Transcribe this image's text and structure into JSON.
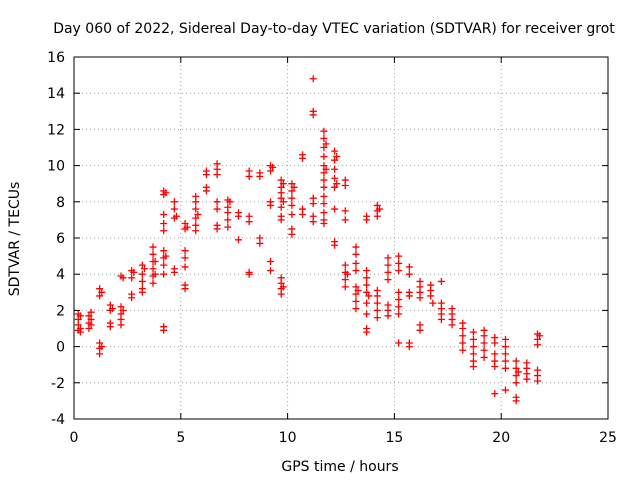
{
  "chart_data": {
    "type": "scatter",
    "title": "Day 060 of 2022, Sidereal Day-to-day VTEC variation (SDTVAR) for receiver grot",
    "xlabel": "GPS time / hours",
    "ylabel": "SDTVAR / TECUs",
    "xlim": [
      0,
      25
    ],
    "ylim": [
      -4,
      16
    ],
    "x_ticks": [
      0,
      5,
      10,
      15,
      20,
      25
    ],
    "y_ticks": [
      -4,
      -2,
      0,
      2,
      4,
      6,
      8,
      10,
      12,
      14,
      16
    ],
    "grid": true,
    "marker": "plus",
    "series": [
      {
        "name": "SDTVAR",
        "color": "#ff0000",
        "points": [
          [
            0.2,
            1.8
          ],
          [
            0.2,
            1.5
          ],
          [
            0.2,
            1.2
          ],
          [
            0.2,
            0.9
          ],
          [
            0.3,
            1.7
          ],
          [
            0.3,
            1.0
          ],
          [
            0.3,
            0.8
          ],
          [
            0.7,
            1.7
          ],
          [
            0.7,
            1.3
          ],
          [
            0.7,
            1.0
          ],
          [
            0.8,
            1.5
          ],
          [
            0.8,
            1.2
          ],
          [
            0.8,
            1.9
          ],
          [
            1.2,
            3.2
          ],
          [
            1.2,
            2.8
          ],
          [
            1.2,
            0.2
          ],
          [
            1.2,
            -0.1
          ],
          [
            1.2,
            -0.4
          ],
          [
            1.3,
            0.0
          ],
          [
            1.3,
            3.0
          ],
          [
            1.7,
            2.3
          ],
          [
            1.7,
            2.0
          ],
          [
            1.7,
            1.3
          ],
          [
            1.7,
            1.1
          ],
          [
            1.8,
            2.1
          ],
          [
            2.2,
            3.9
          ],
          [
            2.2,
            2.2
          ],
          [
            2.2,
            1.8
          ],
          [
            2.2,
            1.5
          ],
          [
            2.2,
            1.2
          ],
          [
            2.3,
            2.0
          ],
          [
            2.3,
            3.8
          ],
          [
            2.7,
            4.2
          ],
          [
            2.7,
            3.8
          ],
          [
            2.7,
            2.9
          ],
          [
            2.7,
            2.7
          ],
          [
            2.8,
            4.1
          ],
          [
            3.2,
            4.5
          ],
          [
            3.2,
            4.0
          ],
          [
            3.2,
            3.6
          ],
          [
            3.2,
            3.2
          ],
          [
            3.2,
            3.0
          ],
          [
            3.3,
            4.3
          ],
          [
            3.7,
            5.5
          ],
          [
            3.7,
            5.1
          ],
          [
            3.7,
            4.7
          ],
          [
            3.7,
            4.3
          ],
          [
            3.7,
            3.9
          ],
          [
            3.7,
            3.5
          ],
          [
            3.8,
            4.0
          ],
          [
            3.8,
            4.7
          ],
          [
            4.2,
            8.6
          ],
          [
            4.2,
            8.4
          ],
          [
            4.2,
            7.3
          ],
          [
            4.2,
            6.8
          ],
          [
            4.2,
            6.4
          ],
          [
            4.2,
            5.3
          ],
          [
            4.2,
            4.9
          ],
          [
            4.2,
            4.5
          ],
          [
            4.2,
            4.0
          ],
          [
            4.2,
            1.1
          ],
          [
            4.2,
            0.9
          ],
          [
            4.3,
            5.0
          ],
          [
            4.3,
            8.5
          ],
          [
            4.7,
            8.0
          ],
          [
            4.7,
            7.6
          ],
          [
            4.7,
            7.1
          ],
          [
            4.7,
            4.3
          ],
          [
            4.7,
            4.1
          ],
          [
            4.8,
            7.2
          ],
          [
            5.2,
            6.8
          ],
          [
            5.2,
            6.5
          ],
          [
            5.2,
            5.3
          ],
          [
            5.2,
            4.9
          ],
          [
            5.2,
            4.4
          ],
          [
            5.2,
            3.4
          ],
          [
            5.2,
            3.2
          ],
          [
            5.3,
            6.6
          ],
          [
            5.7,
            8.3
          ],
          [
            5.7,
            8.0
          ],
          [
            5.7,
            7.6
          ],
          [
            5.7,
            7.1
          ],
          [
            5.7,
            6.7
          ],
          [
            5.7,
            6.4
          ],
          [
            5.8,
            7.3
          ],
          [
            6.2,
            9.7
          ],
          [
            6.2,
            9.5
          ],
          [
            6.2,
            8.8
          ],
          [
            6.2,
            8.6
          ],
          [
            6.7,
            10.1
          ],
          [
            6.7,
            9.8
          ],
          [
            6.7,
            9.5
          ],
          [
            6.7,
            8.0
          ],
          [
            6.7,
            7.6
          ],
          [
            6.7,
            6.7
          ],
          [
            6.7,
            6.5
          ],
          [
            7.2,
            8.1
          ],
          [
            7.2,
            7.7
          ],
          [
            7.2,
            7.4
          ],
          [
            7.2,
            7.0
          ],
          [
            7.2,
            6.6
          ],
          [
            7.3,
            8.0
          ],
          [
            7.7,
            7.4
          ],
          [
            7.7,
            7.2
          ],
          [
            7.7,
            5.9
          ],
          [
            8.2,
            9.7
          ],
          [
            8.2,
            9.4
          ],
          [
            8.2,
            7.2
          ],
          [
            8.2,
            6.9
          ],
          [
            8.2,
            4.1
          ],
          [
            8.2,
            4.0
          ],
          [
            8.7,
            9.6
          ],
          [
            8.7,
            9.4
          ],
          [
            8.7,
            6.0
          ],
          [
            8.7,
            5.7
          ],
          [
            9.2,
            10.0
          ],
          [
            9.2,
            9.7
          ],
          [
            9.2,
            8.0
          ],
          [
            9.2,
            7.8
          ],
          [
            9.2,
            4.7
          ],
          [
            9.2,
            4.2
          ],
          [
            9.3,
            9.9
          ],
          [
            9.7,
            9.2
          ],
          [
            9.7,
            8.8
          ],
          [
            9.7,
            8.5
          ],
          [
            9.7,
            8.2
          ],
          [
            9.7,
            7.7
          ],
          [
            9.7,
            7.2
          ],
          [
            9.7,
            7.0
          ],
          [
            9.7,
            3.8
          ],
          [
            9.7,
            3.5
          ],
          [
            9.7,
            3.2
          ],
          [
            9.7,
            2.9
          ],
          [
            9.8,
            9.0
          ],
          [
            9.8,
            8.0
          ],
          [
            9.8,
            3.3
          ],
          [
            10.2,
            9.0
          ],
          [
            10.2,
            8.6
          ],
          [
            10.2,
            8.2
          ],
          [
            10.2,
            7.8
          ],
          [
            10.2,
            7.3
          ],
          [
            10.2,
            6.5
          ],
          [
            10.2,
            6.2
          ],
          [
            10.3,
            8.8
          ],
          [
            10.7,
            10.6
          ],
          [
            10.7,
            10.4
          ],
          [
            10.7,
            7.6
          ],
          [
            10.7,
            7.3
          ],
          [
            11.2,
            14.8
          ],
          [
            11.2,
            13.0
          ],
          [
            11.2,
            12.8
          ],
          [
            11.2,
            8.2
          ],
          [
            11.2,
            7.9
          ],
          [
            11.2,
            7.2
          ],
          [
            11.2,
            6.9
          ],
          [
            11.7,
            11.9
          ],
          [
            11.7,
            11.5
          ],
          [
            11.7,
            11.0
          ],
          [
            11.7,
            10.5
          ],
          [
            11.7,
            10.0
          ],
          [
            11.7,
            9.6
          ],
          [
            11.7,
            9.2
          ],
          [
            11.7,
            8.8
          ],
          [
            11.7,
            8.3
          ],
          [
            11.7,
            7.9
          ],
          [
            11.7,
            7.4
          ],
          [
            11.7,
            7.0
          ],
          [
            11.7,
            6.8
          ],
          [
            11.8,
            11.2
          ],
          [
            11.8,
            9.8
          ],
          [
            12.2,
            10.8
          ],
          [
            12.2,
            10.3
          ],
          [
            12.2,
            9.8
          ],
          [
            12.2,
            9.3
          ],
          [
            12.2,
            8.8
          ],
          [
            12.2,
            7.6
          ],
          [
            12.2,
            5.8
          ],
          [
            12.2,
            5.6
          ],
          [
            12.3,
            10.5
          ],
          [
            12.3,
            9.0
          ],
          [
            12.7,
            9.2
          ],
          [
            12.7,
            8.9
          ],
          [
            12.7,
            7.5
          ],
          [
            12.7,
            7.0
          ],
          [
            12.7,
            4.5
          ],
          [
            12.7,
            4.1
          ],
          [
            12.7,
            3.7
          ],
          [
            12.7,
            3.3
          ],
          [
            12.8,
            4.0
          ],
          [
            13.2,
            5.5
          ],
          [
            13.2,
            5.1
          ],
          [
            13.2,
            4.6
          ],
          [
            13.2,
            4.2
          ],
          [
            13.2,
            3.3
          ],
          [
            13.2,
            2.9
          ],
          [
            13.2,
            2.5
          ],
          [
            13.2,
            2.1
          ],
          [
            13.3,
            3.1
          ],
          [
            13.7,
            7.2
          ],
          [
            13.7,
            7.0
          ],
          [
            13.7,
            4.2
          ],
          [
            13.7,
            3.8
          ],
          [
            13.7,
            3.4
          ],
          [
            13.7,
            3.0
          ],
          [
            13.7,
            2.4
          ],
          [
            13.7,
            1.8
          ],
          [
            13.7,
            1.0
          ],
          [
            13.7,
            0.8
          ],
          [
            13.8,
            2.8
          ],
          [
            14.2,
            7.8
          ],
          [
            14.2,
            7.5
          ],
          [
            14.2,
            7.2
          ],
          [
            14.2,
            3.1
          ],
          [
            14.2,
            2.8
          ],
          [
            14.2,
            2.4
          ],
          [
            14.2,
            2.0
          ],
          [
            14.2,
            1.6
          ],
          [
            14.3,
            7.6
          ],
          [
            14.7,
            4.9
          ],
          [
            14.7,
            4.5
          ],
          [
            14.7,
            4.1
          ],
          [
            14.7,
            3.7
          ],
          [
            14.7,
            2.3
          ],
          [
            14.7,
            2.0
          ],
          [
            14.7,
            1.7
          ],
          [
            15.2,
            5.0
          ],
          [
            15.2,
            4.6
          ],
          [
            15.2,
            4.2
          ],
          [
            15.2,
            3.0
          ],
          [
            15.2,
            2.6
          ],
          [
            15.2,
            2.2
          ],
          [
            15.2,
            1.8
          ],
          [
            15.2,
            0.2
          ],
          [
            15.7,
            4.4
          ],
          [
            15.7,
            4.0
          ],
          [
            15.7,
            3.0
          ],
          [
            15.7,
            2.8
          ],
          [
            15.7,
            0.2
          ],
          [
            15.7,
            0.0
          ],
          [
            16.2,
            3.6
          ],
          [
            16.2,
            3.3
          ],
          [
            16.2,
            3.0
          ],
          [
            16.2,
            2.7
          ],
          [
            16.2,
            1.2
          ],
          [
            16.2,
            0.9
          ],
          [
            16.7,
            3.4
          ],
          [
            16.7,
            3.1
          ],
          [
            16.7,
            2.8
          ],
          [
            16.8,
            2.4
          ],
          [
            17.2,
            3.6
          ],
          [
            17.2,
            2.4
          ],
          [
            17.2,
            2.1
          ],
          [
            17.2,
            1.8
          ],
          [
            17.2,
            1.5
          ],
          [
            17.7,
            2.1
          ],
          [
            17.7,
            1.8
          ],
          [
            17.7,
            1.5
          ],
          [
            17.7,
            1.2
          ],
          [
            18.2,
            1.3
          ],
          [
            18.2,
            1.0
          ],
          [
            18.2,
            0.6
          ],
          [
            18.2,
            0.2
          ],
          [
            18.2,
            -0.2
          ],
          [
            18.7,
            0.8
          ],
          [
            18.7,
            0.4
          ],
          [
            18.7,
            0.0
          ],
          [
            18.7,
            -0.4
          ],
          [
            18.7,
            -0.8
          ],
          [
            18.7,
            -1.1
          ],
          [
            19.2,
            0.9
          ],
          [
            19.2,
            0.6
          ],
          [
            19.2,
            0.2
          ],
          [
            19.2,
            -0.2
          ],
          [
            19.2,
            -0.6
          ],
          [
            19.7,
            0.5
          ],
          [
            19.7,
            0.2
          ],
          [
            19.7,
            -0.4
          ],
          [
            19.7,
            -0.8
          ],
          [
            19.7,
            -1.1
          ],
          [
            19.7,
            -2.6
          ],
          [
            20.2,
            0.4
          ],
          [
            20.2,
            0.0
          ],
          [
            20.2,
            -0.4
          ],
          [
            20.2,
            -0.8
          ],
          [
            20.2,
            -1.2
          ],
          [
            20.2,
            -2.4
          ],
          [
            20.7,
            -0.8
          ],
          [
            20.7,
            -1.2
          ],
          [
            20.7,
            -1.6
          ],
          [
            20.7,
            -2.0
          ],
          [
            20.7,
            -2.8
          ],
          [
            20.7,
            -3.0
          ],
          [
            20.8,
            -1.4
          ],
          [
            21.2,
            -0.9
          ],
          [
            21.2,
            -1.2
          ],
          [
            21.2,
            -1.5
          ],
          [
            21.2,
            -1.8
          ],
          [
            21.7,
            0.7
          ],
          [
            21.7,
            0.4
          ],
          [
            21.7,
            0.1
          ],
          [
            21.7,
            -1.3
          ],
          [
            21.7,
            -1.6
          ],
          [
            21.7,
            -1.9
          ],
          [
            21.8,
            0.6
          ]
        ]
      }
    ]
  }
}
